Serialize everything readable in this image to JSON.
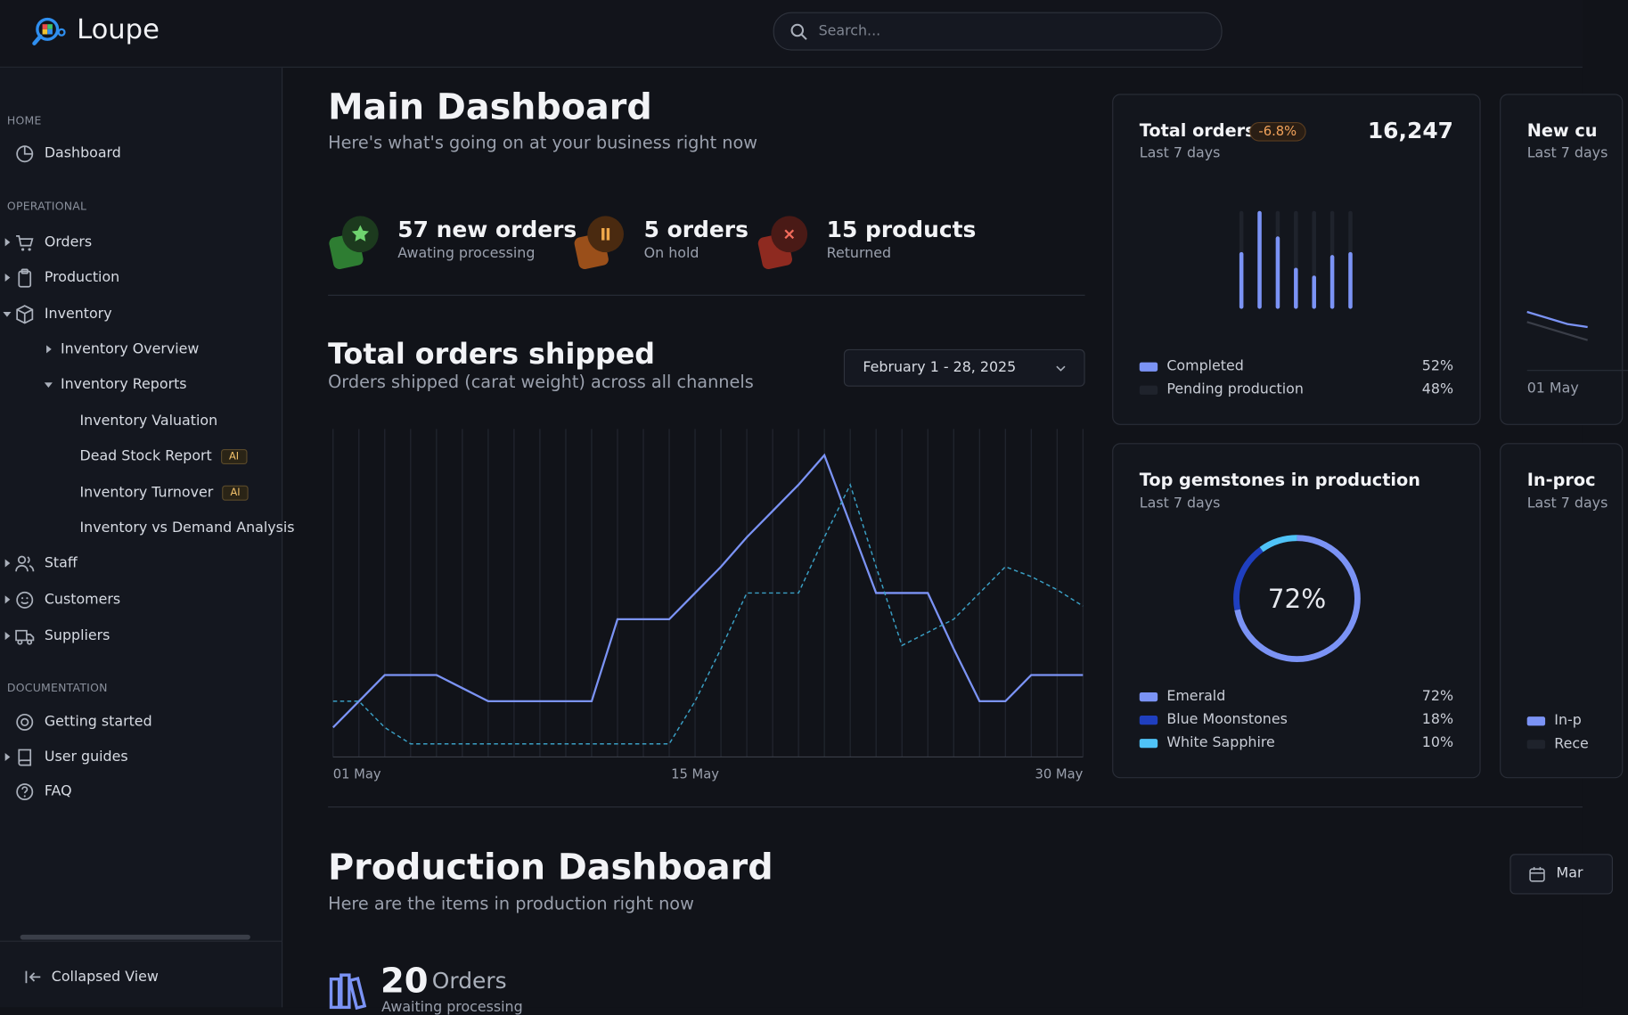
{
  "header": {
    "brand": "Loupe",
    "search_placeholder": "Search..."
  },
  "sidebar": {
    "sections": [
      {
        "heading": "HOME",
        "items": [
          "Dashboard"
        ]
      },
      {
        "heading": "OPERATIONAL",
        "items": [
          "Orders",
          "Production",
          "Inventory",
          "Inventory Overview",
          "Inventory Reports",
          "Inventory Valuation",
          "Dead Stock Report",
          "Inventory Turnover",
          "Inventory vs Demand Analysis",
          "Staff",
          "Customers",
          "Suppliers"
        ]
      },
      {
        "heading": "DOCUMENTATION",
        "items": [
          "Getting started",
          "User guides",
          "FAQ"
        ]
      }
    ],
    "badges": [
      "AI",
      "AI"
    ],
    "collapse": "Collapsed View"
  },
  "main": {
    "title": "Main Dashboard",
    "subtitle": "Here's what's going on at your business right now",
    "stats": [
      {
        "title": "57 new orders",
        "subtitle": "Awating processing"
      },
      {
        "title": "5 orders",
        "subtitle": "On hold"
      },
      {
        "title": "15 products",
        "subtitle": "Returned"
      }
    ]
  },
  "orders_chart": {
    "type": "line",
    "title": "Total orders shipped",
    "subtitle": "Orders shipped (carat weight) across all channels",
    "date_range": "February 1 - 28, 2025",
    "categories": [
      "01 May",
      null,
      null,
      null,
      null,
      null,
      null,
      null,
      null,
      null,
      null,
      null,
      null,
      null,
      "15 May",
      null,
      null,
      null,
      null,
      null,
      null,
      null,
      null,
      null,
      null,
      null,
      null,
      null,
      null,
      "30 May"
    ],
    "ylim": [
      0,
      100
    ],
    "grid": true,
    "series": [
      {
        "color": "#7b93f5",
        "style": "solid",
        "values": [
          9,
          17,
          25,
          25,
          25,
          21,
          17,
          17,
          17,
          17,
          17,
          42,
          42,
          42,
          50,
          58,
          67,
          75,
          83,
          92,
          71,
          50,
          50,
          50,
          33,
          17,
          17,
          25,
          25,
          25
        ]
      },
      {
        "color": "#3a9fc4",
        "style": "dashed",
        "values": [
          17,
          17,
          9,
          4,
          4,
          4,
          4,
          4,
          4,
          4,
          4,
          4,
          4,
          4,
          17,
          33,
          50,
          50,
          50,
          67,
          83,
          58,
          34,
          38,
          42,
          50,
          58,
          55,
          51,
          46
        ]
      }
    ]
  },
  "cards": [
    {
      "title": "Total orders",
      "badge": "-6.8%",
      "total": "16,247",
      "period": "Last 7 days",
      "chart": {
        "type": "bar",
        "values": [
          58,
          100,
          74,
          42,
          34,
          55,
          58
        ],
        "ylim": [
          0,
          100
        ],
        "color": "#7b93f5",
        "track_color": "#1f232c"
      },
      "legend": [
        {
          "name": "Completed",
          "color": "#7b93f5",
          "value_label": "52%"
        },
        {
          "name": "Pending production",
          "color": "#1f232c",
          "value_label": "48%"
        }
      ]
    },
    {
      "title": "New cu",
      "period": "Last 7 days",
      "axis_label": "01 May"
    },
    {
      "title": "Top gemstones in production",
      "period": "Last 7 days",
      "chart": {
        "type": "donut",
        "center_label": "72%",
        "categories": [
          "Emerald",
          "Blue Moonstones",
          "White Sapphire"
        ],
        "values": [
          72,
          18,
          10
        ],
        "value_labels": [
          "72%",
          "18%",
          "10%"
        ],
        "colors": [
          "#7b93f5",
          "#1f3fbf",
          "#4fc3f7"
        ]
      }
    },
    {
      "title": "In-proc",
      "period": "Last 7 days",
      "legend": [
        "In-p",
        "Rece"
      ]
    }
  ],
  "production": {
    "title": "Production Dashboard",
    "subtitle": "Here are the items in production right now",
    "date_button": "Mar",
    "count": "20",
    "count_label": "Orders",
    "count_sub": "Awaiting processing"
  }
}
